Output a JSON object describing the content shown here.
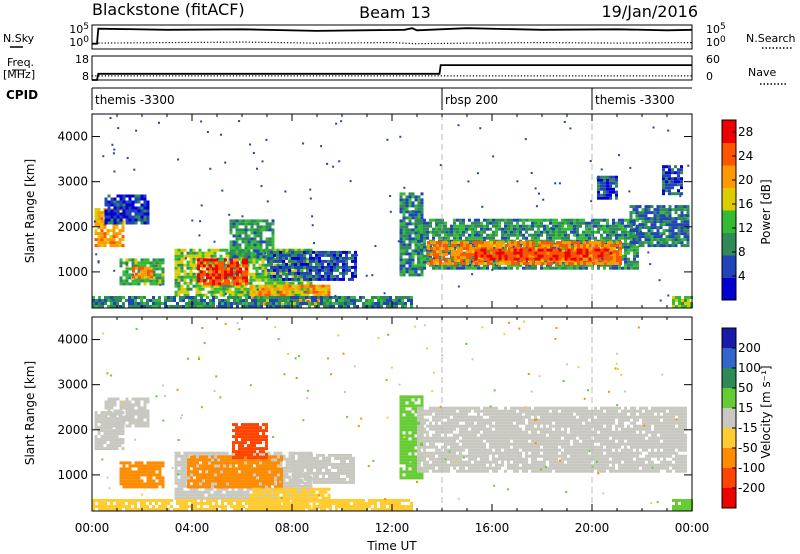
{
  "header": {
    "station": "Blackstone (fitACF)",
    "beam": "Beam 13",
    "date": "19/Jan/2016"
  },
  "labels": {
    "nsky": "N.Sky",
    "nsearch": "N.Search",
    "freq": "Freq.",
    "freq_unit": "[MHz]",
    "nave": "Nave",
    "cpid": "CPID",
    "xlabel": "Time UT",
    "power_label": "Power [dB]",
    "velocity_label": "Velocity [m s⁻¹]"
  },
  "chart_data": [
    {
      "type": "line",
      "panel": "noise",
      "left_ticks": [
        "10^5",
        "10^0"
      ],
      "right_ticks": [
        "10^5",
        "10^0"
      ],
      "series": [
        {
          "name": "N.Sky",
          "style": "solid",
          "x": [
            0,
            0.2,
            0.25,
            3,
            6,
            9,
            12.5,
            12.8,
            13,
            15,
            18,
            21,
            23,
            24
          ],
          "y": [
            1.0,
            1.0,
            3.8,
            3.6,
            3.7,
            3.4,
            3.6,
            3.9,
            3.5,
            3.9,
            3.6,
            3.7,
            3.5,
            3.6
          ]
        },
        {
          "name": "N.Search",
          "style": "dotted",
          "x": [
            0,
            0.2,
            0.25,
            3,
            6,
            9,
            12,
            13,
            15,
            18,
            21,
            24
          ],
          "y": [
            1.0,
            1.0,
            1.1,
            1.2,
            1.3,
            1.1,
            1.2,
            1.0,
            1.1,
            1.2,
            1.1,
            1.2
          ]
        }
      ]
    },
    {
      "type": "line",
      "panel": "frequency",
      "left_ticks": [
        "18",
        "8"
      ],
      "right_ticks": [
        "60",
        "0"
      ],
      "series": [
        {
          "name": "Freq.",
          "style": "solid",
          "x": [
            0,
            0.2,
            0.25,
            13.9,
            13.95,
            24
          ],
          "y": [
            8,
            8,
            10.6,
            10.6,
            14.2,
            14.2
          ]
        },
        {
          "name": "Nave",
          "style": "dotted",
          "x": [
            0,
            24
          ],
          "y": [
            9.7,
            9.7
          ]
        }
      ]
    },
    {
      "type": "table",
      "panel": "cpid",
      "segments": [
        {
          "start": 0,
          "label": "themis -3300"
        },
        {
          "start": 14,
          "label": "rbsp 200"
        },
        {
          "start": 20,
          "label": "themis -3300"
        }
      ]
    },
    {
      "type": "heatmap",
      "panel": "power",
      "xlabel": "Time UT",
      "ylabel": "Slant Range [km]",
      "xlim": [
        0,
        24
      ],
      "ylim": [
        200,
        4500
      ],
      "x_ticks": [
        "00:00",
        "04:00",
        "08:00",
        "12:00",
        "16:00",
        "20:00",
        "00:00"
      ],
      "y_ticks": [
        1000,
        2000,
        3000,
        4000
      ],
      "colorbar": {
        "label": "Power [dB]",
        "ticks": [
          4,
          8,
          12,
          16,
          20,
          24,
          28
        ],
        "range": [
          0,
          30
        ],
        "colors": [
          "#0000d0",
          "#2244bb",
          "#2e8b57",
          "#33bb33",
          "#ddcc00",
          "#ff9900",
          "#ff5500",
          "#ee0000"
        ]
      },
      "regions": [
        {
          "t0": 0.1,
          "t1": 1.2,
          "r0": 1550,
          "r1": 2400,
          "value": 20
        },
        {
          "t0": 0.5,
          "t1": 2.2,
          "r0": 2050,
          "r1": 2700,
          "value": 5
        },
        {
          "t0": 1.1,
          "t1": 2.8,
          "r0": 700,
          "r1": 1250,
          "value": 12
        },
        {
          "t0": 1.6,
          "t1": 2.4,
          "r0": 850,
          "r1": 1050,
          "value": 22
        },
        {
          "t0": 3.3,
          "t1": 8.8,
          "r0": 450,
          "r1": 1450,
          "value": 14
        },
        {
          "t0": 4.2,
          "t1": 6.2,
          "r0": 700,
          "r1": 1250,
          "value": 26
        },
        {
          "t0": 5.5,
          "t1": 7.2,
          "r0": 1300,
          "r1": 2100,
          "value": 10
        },
        {
          "t0": 6.3,
          "t1": 9.5,
          "r0": 250,
          "r1": 700,
          "value": 20
        },
        {
          "t0": 7.0,
          "t1": 10.5,
          "r0": 800,
          "r1": 1400,
          "value": 6
        },
        {
          "t0": 0,
          "t1": 12.8,
          "r0": 200,
          "r1": 420,
          "value": 9
        },
        {
          "t0": 12.3,
          "t1": 13.2,
          "r0": 900,
          "r1": 2700,
          "value": 9
        },
        {
          "t0": 13.0,
          "t1": 21.8,
          "r0": 1050,
          "r1": 2150,
          "value": 10
        },
        {
          "t0": 13.4,
          "t1": 21.2,
          "r0": 1150,
          "r1": 1650,
          "value": 22
        },
        {
          "t0": 15.3,
          "t1": 20.8,
          "r0": 1250,
          "r1": 1500,
          "value": 26
        },
        {
          "t0": 21.5,
          "t1": 23.8,
          "r0": 1550,
          "r1": 2450,
          "value": 8
        },
        {
          "t0": 23.2,
          "t1": 24.0,
          "r0": 200,
          "r1": 430,
          "value": 14
        },
        {
          "t0": 20.2,
          "t1": 21.0,
          "r0": 2600,
          "r1": 3100,
          "value": 5
        },
        {
          "t0": 22.8,
          "t1": 23.6,
          "r0": 2700,
          "r1": 3300,
          "value": 5
        }
      ]
    },
    {
      "type": "heatmap",
      "panel": "velocity",
      "xlabel": "Time UT",
      "ylabel": "Slant Range [km]",
      "xlim": [
        0,
        24
      ],
      "ylim": [
        200,
        4500
      ],
      "x_ticks": [
        "00:00",
        "04:00",
        "08:00",
        "12:00",
        "16:00",
        "20:00",
        "00:00"
      ],
      "y_ticks": [
        1000,
        2000,
        3000,
        4000
      ],
      "colorbar": {
        "label": "Velocity [m s⁻¹]",
        "ticks": [
          200,
          100,
          50,
          15,
          -15,
          -50,
          -100,
          -200
        ],
        "bands": [
          "#1a1aaa",
          "#3366cc",
          "#2e8b57",
          "#66cc33",
          "#c8c8c0",
          "#ffcc33",
          "#ff8c00",
          "#ff4400",
          "#ee0000"
        ]
      },
      "regions": [
        {
          "t0": 0.1,
          "t1": 1.2,
          "r0": 1550,
          "r1": 2400,
          "value": -5
        },
        {
          "t0": 0.5,
          "t1": 2.2,
          "r0": 2050,
          "r1": 2700,
          "value": -5
        },
        {
          "t0": 1.1,
          "t1": 2.8,
          "r0": 700,
          "r1": 1250,
          "value": -60
        },
        {
          "t0": 3.3,
          "t1": 8.8,
          "r0": 450,
          "r1": 1450,
          "value": -5
        },
        {
          "t0": 3.8,
          "t1": 7.6,
          "r0": 700,
          "r1": 1400,
          "value": -80
        },
        {
          "t0": 5.6,
          "t1": 7.0,
          "r0": 1350,
          "r1": 2100,
          "value": -120
        },
        {
          "t0": 6.3,
          "t1": 9.5,
          "r0": 250,
          "r1": 700,
          "value": -40
        },
        {
          "t0": 8.0,
          "t1": 10.5,
          "r0": 800,
          "r1": 1400,
          "value": -5
        },
        {
          "t0": 0,
          "t1": 12.8,
          "r0": 200,
          "r1": 420,
          "value": -40
        },
        {
          "t0": 12.3,
          "t1": 13.2,
          "r0": 900,
          "r1": 2700,
          "value": 40
        },
        {
          "t0": 13.0,
          "t1": 23.8,
          "r0": 1050,
          "r1": 2450,
          "value": 0
        },
        {
          "t0": 23.2,
          "t1": 24.0,
          "r0": 200,
          "r1": 430,
          "value": 30
        }
      ]
    }
  ]
}
